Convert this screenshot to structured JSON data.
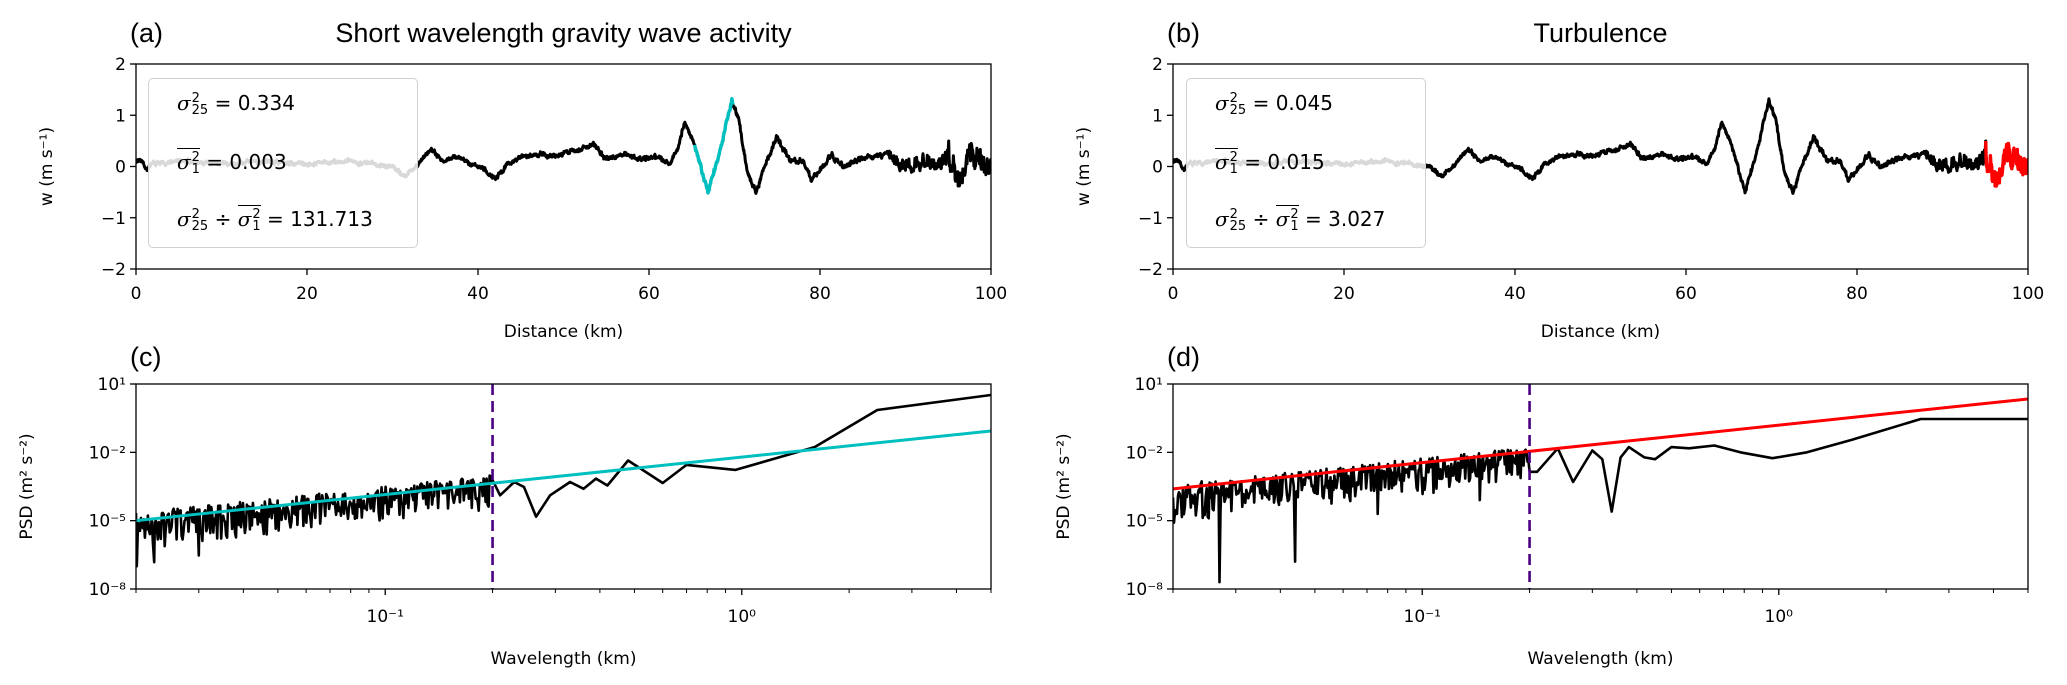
{
  "chart_data": [
    {
      "panel": "(a)",
      "type": "line",
      "title": "Short wavelength gravity wave activity",
      "xlabel": "Distance (km)",
      "ylabel": "w (m s⁻¹)",
      "xlim": [
        0,
        100
      ],
      "ylim": [
        -2,
        2
      ],
      "xticks": [
        0,
        20,
        40,
        60,
        80,
        100
      ],
      "xtick_labels": [
        "0",
        "20",
        "40",
        "60",
        "80",
        "100"
      ],
      "yticks": [
        -2,
        -1,
        0,
        1,
        2
      ],
      "ytick_labels": [
        "−2",
        "−1",
        "0",
        "1",
        "2"
      ],
      "series": {
        "name": "w",
        "color": "#000000",
        "points": [
          [
            0,
            0.1
          ],
          [
            0.6,
            0.15
          ],
          [
            1.2,
            -0.05
          ],
          [
            2,
            0.05
          ],
          [
            5,
            0.1
          ],
          [
            10,
            0.05
          ],
          [
            15,
            0.1
          ],
          [
            20,
            0.05
          ],
          [
            25,
            0.1
          ],
          [
            28,
            0.05
          ],
          [
            30,
            0.0
          ],
          [
            31.5,
            -0.2
          ],
          [
            33,
            0.05
          ],
          [
            34.5,
            0.35
          ],
          [
            36,
            0.1
          ],
          [
            37.5,
            0.2
          ],
          [
            39,
            0.05
          ],
          [
            40.5,
            0.0
          ],
          [
            42,
            -0.25
          ],
          [
            43.5,
            0.05
          ],
          [
            45,
            0.2
          ],
          [
            47,
            0.25
          ],
          [
            49,
            0.2
          ],
          [
            51,
            0.3
          ],
          [
            53.5,
            0.42
          ],
          [
            55,
            0.15
          ],
          [
            57,
            0.25
          ],
          [
            59,
            0.15
          ],
          [
            61,
            0.2
          ],
          [
            62.5,
            0.05
          ],
          [
            63.3,
            0.35
          ],
          [
            64.2,
            0.85
          ],
          [
            65.3,
            0.45
          ],
          [
            66.9,
            -0.52
          ],
          [
            68.3,
            0.3
          ],
          [
            69.7,
            1.3
          ],
          [
            70.5,
            0.9
          ],
          [
            71.5,
            -0.1
          ],
          [
            72.5,
            -0.5
          ],
          [
            73.5,
            0.0
          ],
          [
            74.9,
            0.55
          ],
          [
            76.5,
            0.15
          ],
          [
            78,
            0.1
          ],
          [
            79,
            -0.26
          ],
          [
            80.5,
            0.05
          ],
          [
            81.3,
            0.22
          ],
          [
            82.9,
            0.0
          ],
          [
            85,
            0.15
          ],
          [
            88,
            0.25
          ],
          [
            90,
            0.0
          ],
          [
            92,
            0.05
          ],
          [
            94,
            0.1
          ],
          [
            95,
            0.2
          ],
          [
            96.5,
            -0.35
          ],
          [
            97.5,
            0.15
          ],
          [
            98.5,
            0.3
          ],
          [
            100,
            0.05
          ]
        ],
        "noise_amplitude": [
          [
            0,
            60,
            0.05
          ],
          [
            60,
            88,
            0.06
          ],
          [
            88,
            95,
            0.16
          ],
          [
            95,
            100,
            0.28
          ]
        ]
      },
      "highlight": {
        "x_range": [
          65.3,
          69.8
        ],
        "color": "#00bfbf"
      },
      "legend": {
        "line1": {
          "symbol": "σ",
          "sup": "2",
          "sub": "25",
          "value": "0.334"
        },
        "line2": {
          "symbol": "σ",
          "sup": "2",
          "sub": "1",
          "value": "0.003"
        },
        "line3": {
          "value": "131.713"
        },
        "eq": "=",
        "div": "÷"
      }
    },
    {
      "panel": "(b)",
      "type": "line",
      "title": "Turbulence",
      "xlabel": "Distance (km)",
      "ylabel": "w (m s⁻¹)",
      "xlim": [
        0,
        100
      ],
      "ylim": [
        -2,
        2
      ],
      "xticks": [
        0,
        20,
        40,
        60,
        80,
        100
      ],
      "xtick_labels": [
        "0",
        "20",
        "40",
        "60",
        "80",
        "100"
      ],
      "yticks": [
        -2,
        -1,
        0,
        1,
        2
      ],
      "ytick_labels": [
        "−2",
        "−1",
        "0",
        "1",
        "2"
      ],
      "series_ref": "same as (a)",
      "highlight": {
        "x_range": [
          95,
          100
        ],
        "color": "#ff0000"
      },
      "legend": {
        "line1": {
          "symbol": "σ",
          "sup": "2",
          "sub": "25",
          "value": "0.045"
        },
        "line2": {
          "symbol": "σ",
          "sup": "2",
          "sub": "1",
          "value": "0.015"
        },
        "line3": {
          "value": "3.027"
        },
        "eq": "=",
        "div": "÷"
      }
    },
    {
      "panel": "(c)",
      "type": "line",
      "xscale": "log",
      "yscale": "log",
      "xlabel": "Wavelength (km)",
      "ylabel": "PSD (m² s⁻²)",
      "xlim": [
        0.02,
        5
      ],
      "ylim": [
        1e-08,
        10
      ],
      "xticks": [
        0.1,
        1
      ],
      "xtick_labels": [
        "10⁻¹",
        "10⁰"
      ],
      "yticks": [
        1e-08,
        1e-05,
        0.01,
        10
      ],
      "ytick_labels": [
        "10⁻⁸",
        "10⁻⁵",
        "10⁻²",
        "10¹"
      ],
      "vline": {
        "x": 0.2,
        "color": "#4b0082",
        "style": "dashed"
      },
      "fit": {
        "color": "#00bfbf",
        "from": [
          0.02,
          1e-05
        ],
        "to": [
          5,
          0.087
        ]
      },
      "spectrum": {
        "color": "#000000",
        "noisy_range": [
          0.02,
          0.2
        ],
        "scatter_decades": [
          -1.3,
          0.35
        ],
        "spikes": [
          [
            0.0201,
            1e-07
          ],
          [
            0.0225,
            1.5e-07
          ],
          [
            0.03,
            3e-07
          ]
        ],
        "points": [
          [
            0.2,
            0.0006
          ],
          [
            0.21,
            0.00013
          ],
          [
            0.23,
            0.0005
          ],
          [
            0.245,
            0.0003
          ],
          [
            0.265,
            1.5e-05
          ],
          [
            0.29,
            0.00013
          ],
          [
            0.33,
            0.0005
          ],
          [
            0.36,
            0.00025
          ],
          [
            0.39,
            0.0007
          ],
          [
            0.42,
            0.00035
          ],
          [
            0.48,
            0.0044
          ],
          [
            0.6,
            0.00045
          ],
          [
            0.7,
            0.0028
          ],
          [
            0.96,
            0.0017
          ],
          [
            1.6,
            0.017
          ],
          [
            2.4,
            0.72
          ],
          [
            5,
            3.3
          ]
        ]
      }
    },
    {
      "panel": "(d)",
      "type": "line",
      "xscale": "log",
      "yscale": "log",
      "xlabel": "Wavelength (km)",
      "ylabel": "PSD (m² s⁻²)",
      "xlim": [
        0.02,
        5
      ],
      "ylim": [
        1e-08,
        10
      ],
      "xticks": [
        0.1,
        1
      ],
      "xtick_labels": [
        "10⁻¹",
        "10⁰"
      ],
      "yticks": [
        1e-08,
        1e-05,
        0.01,
        10
      ],
      "ytick_labels": [
        "10⁻⁸",
        "10⁻⁵",
        "10⁻²",
        "10¹"
      ],
      "vline": {
        "x": 0.2,
        "color": "#4b0082",
        "style": "dashed"
      },
      "fit": {
        "color": "#ff0000",
        "from": [
          0.02,
          0.00025
        ],
        "to": [
          5,
          2.2
        ]
      },
      "spectrum": {
        "color": "#000000",
        "noisy_range": [
          0.02,
          0.2
        ],
        "scatter_decades": [
          -1.5,
          0.2
        ],
        "spikes": [
          [
            0.0202,
            1.5e-05
          ],
          [
            0.027,
            2e-08
          ],
          [
            0.044,
            1.6e-07
          ],
          [
            0.075,
            2e-05
          ],
          [
            0.145,
            8e-05
          ]
        ],
        "points": [
          [
            0.2,
            0.0014
          ],
          [
            0.21,
            0.0014
          ],
          [
            0.24,
            0.015
          ],
          [
            0.265,
            0.0005
          ],
          [
            0.3,
            0.012
          ],
          [
            0.32,
            0.005
          ],
          [
            0.34,
            2.5e-05
          ],
          [
            0.36,
            0.006
          ],
          [
            0.38,
            0.017
          ],
          [
            0.42,
            0.006
          ],
          [
            0.45,
            0.005
          ],
          [
            0.5,
            0.017
          ],
          [
            0.56,
            0.015
          ],
          [
            0.66,
            0.02
          ],
          [
            0.78,
            0.01
          ],
          [
            0.96,
            0.0055
          ],
          [
            1.2,
            0.01
          ],
          [
            1.6,
            0.035
          ],
          [
            2.5,
            0.29
          ],
          [
            5,
            0.29
          ]
        ]
      }
    }
  ]
}
